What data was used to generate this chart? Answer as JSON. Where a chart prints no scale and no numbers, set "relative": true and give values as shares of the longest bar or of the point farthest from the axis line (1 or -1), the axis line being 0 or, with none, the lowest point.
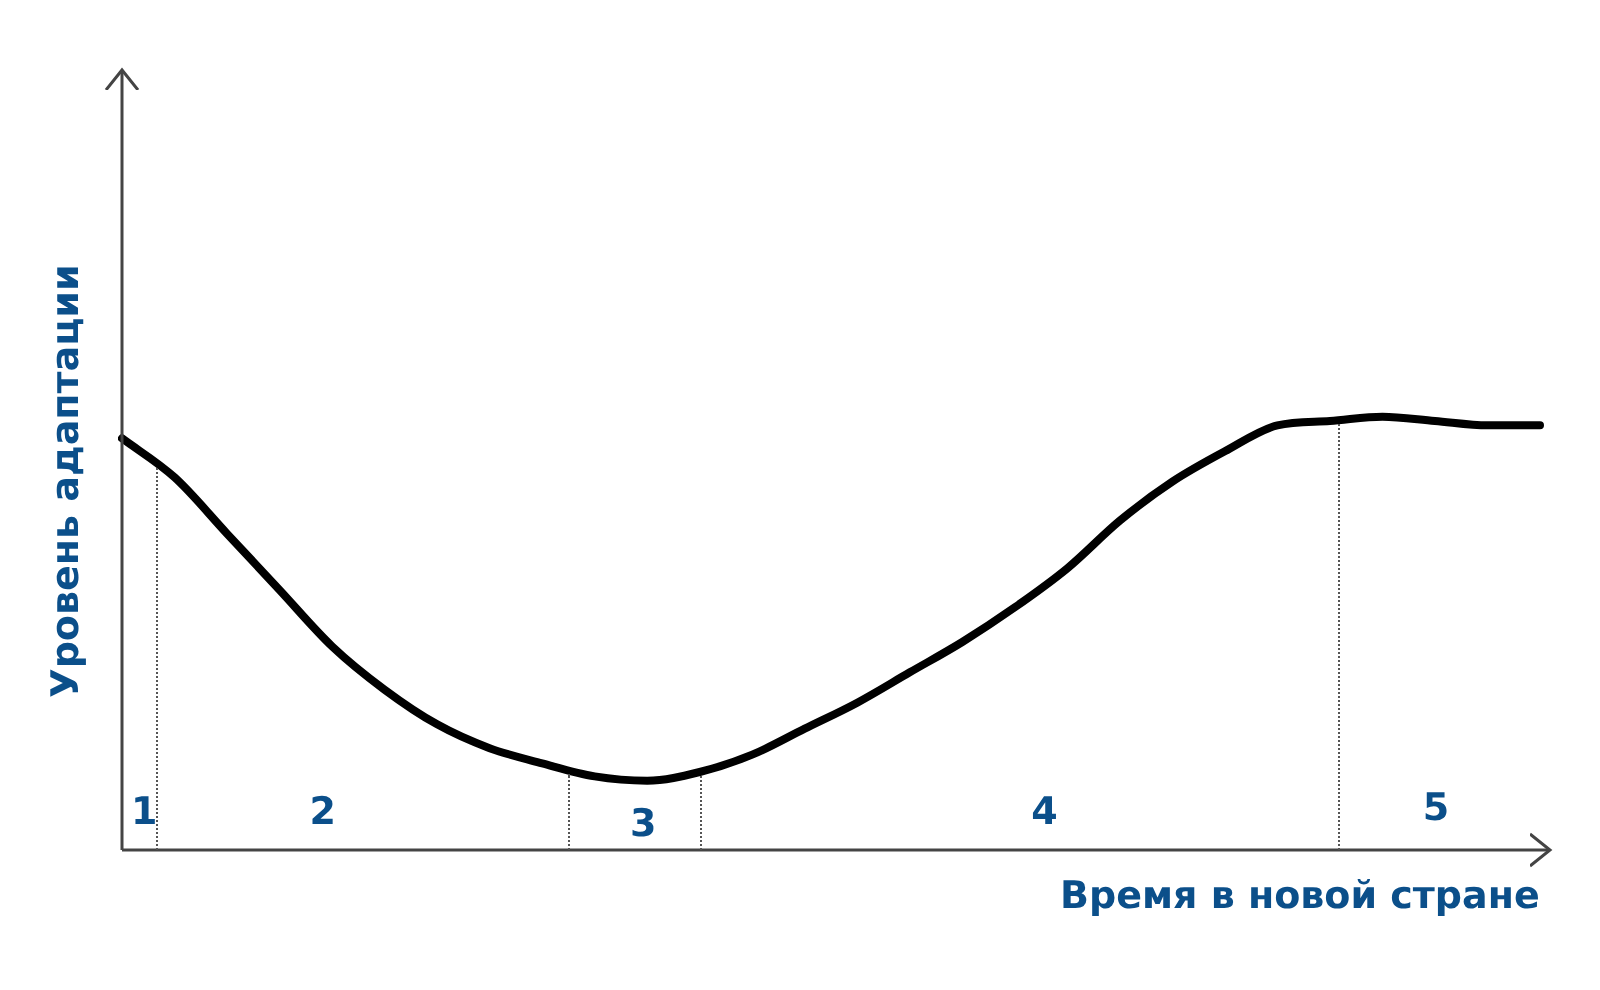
{
  "chart_data": {
    "type": "line",
    "relative": true,
    "xlabel": "Время в новой стране",
    "ylabel": "Уровень адаптации",
    "marker": "none",
    "line_style": "solid",
    "categories": [
      null,
      null,
      null,
      null,
      null,
      null,
      null,
      null,
      null,
      null,
      null,
      null,
      null,
      null,
      null,
      null,
      null,
      null,
      null,
      null,
      null,
      null,
      null,
      null,
      null,
      null,
      null,
      null
    ],
    "series": [
      {
        "color": "#000000",
        "values": [
          0.95,
          0.86,
          0.73,
          0.6,
          0.47,
          0.37,
          0.29,
          0.235,
          0.2,
          0.17,
          0.16,
          0.18,
          0.22,
          0.28,
          0.34,
          0.41,
          0.48,
          0.56,
          0.65,
          0.76,
          0.85,
          0.92,
          0.98,
          0.99,
          1,
          0.99,
          0.98,
          0.98
        ]
      }
    ],
    "annotations": [
      "1",
      "2",
      "3",
      "4",
      "5"
    ]
  }
}
